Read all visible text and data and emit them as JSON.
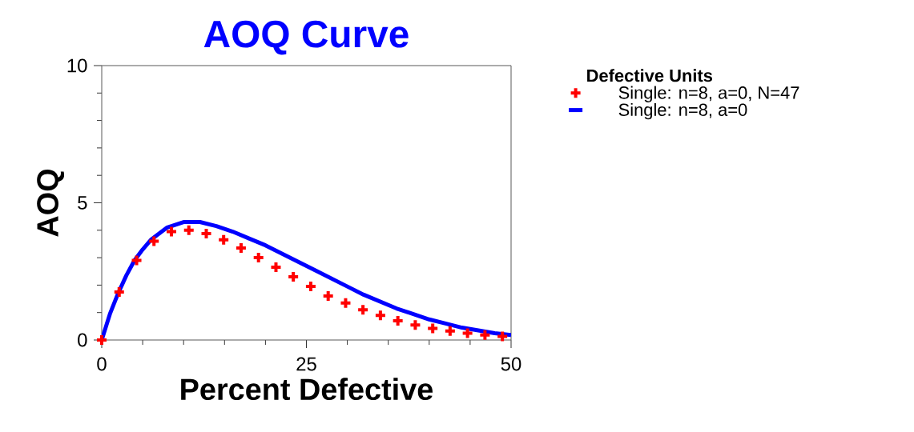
{
  "chart_data": {
    "type": "line",
    "title": "AOQ Curve",
    "xlabel": "Percent Defective",
    "ylabel": "AOQ",
    "legend_title": "Defective Units",
    "legend": "right",
    "grid": false,
    "xlim": [
      0,
      50
    ],
    "ylim": [
      0,
      10
    ],
    "xticks": [
      0,
      25,
      50
    ],
    "yticks": [
      0,
      5,
      10
    ],
    "series": [
      {
        "name": "Single: n=8, a=0, N=47",
        "type": "scatter",
        "marker": "cross",
        "color": "#ff0000",
        "x": [
          0,
          2.13,
          4.26,
          6.38,
          8.51,
          10.64,
          12.77,
          14.89,
          17.02,
          19.15,
          21.28,
          23.4,
          25.53,
          27.66,
          29.79,
          31.91,
          34.04,
          36.17,
          38.3,
          40.43,
          42.55,
          44.68,
          46.81,
          48.94
        ],
        "values": [
          0,
          1.75,
          2.9,
          3.6,
          3.95,
          4.0,
          3.88,
          3.65,
          3.35,
          3.0,
          2.65,
          2.3,
          1.95,
          1.6,
          1.35,
          1.1,
          0.9,
          0.7,
          0.55,
          0.42,
          0.33,
          0.25,
          0.18,
          0.13
        ]
      },
      {
        "name": "Single: n=8, a=0",
        "marker": "none",
        "line_style": "solid",
        "color": "#0000ff",
        "x": [
          0,
          1,
          2,
          3,
          4,
          5,
          6,
          8,
          10,
          12,
          14,
          16,
          18,
          20,
          22,
          24,
          26,
          28,
          30,
          32,
          34,
          36,
          38,
          40,
          42,
          44,
          46,
          48,
          50
        ],
        "values": [
          0,
          0.95,
          1.7,
          2.35,
          2.9,
          3.3,
          3.65,
          4.1,
          4.3,
          4.3,
          4.15,
          3.95,
          3.7,
          3.45,
          3.15,
          2.85,
          2.55,
          2.25,
          1.95,
          1.65,
          1.4,
          1.15,
          0.95,
          0.75,
          0.6,
          0.45,
          0.35,
          0.25,
          0.18
        ]
      }
    ]
  }
}
